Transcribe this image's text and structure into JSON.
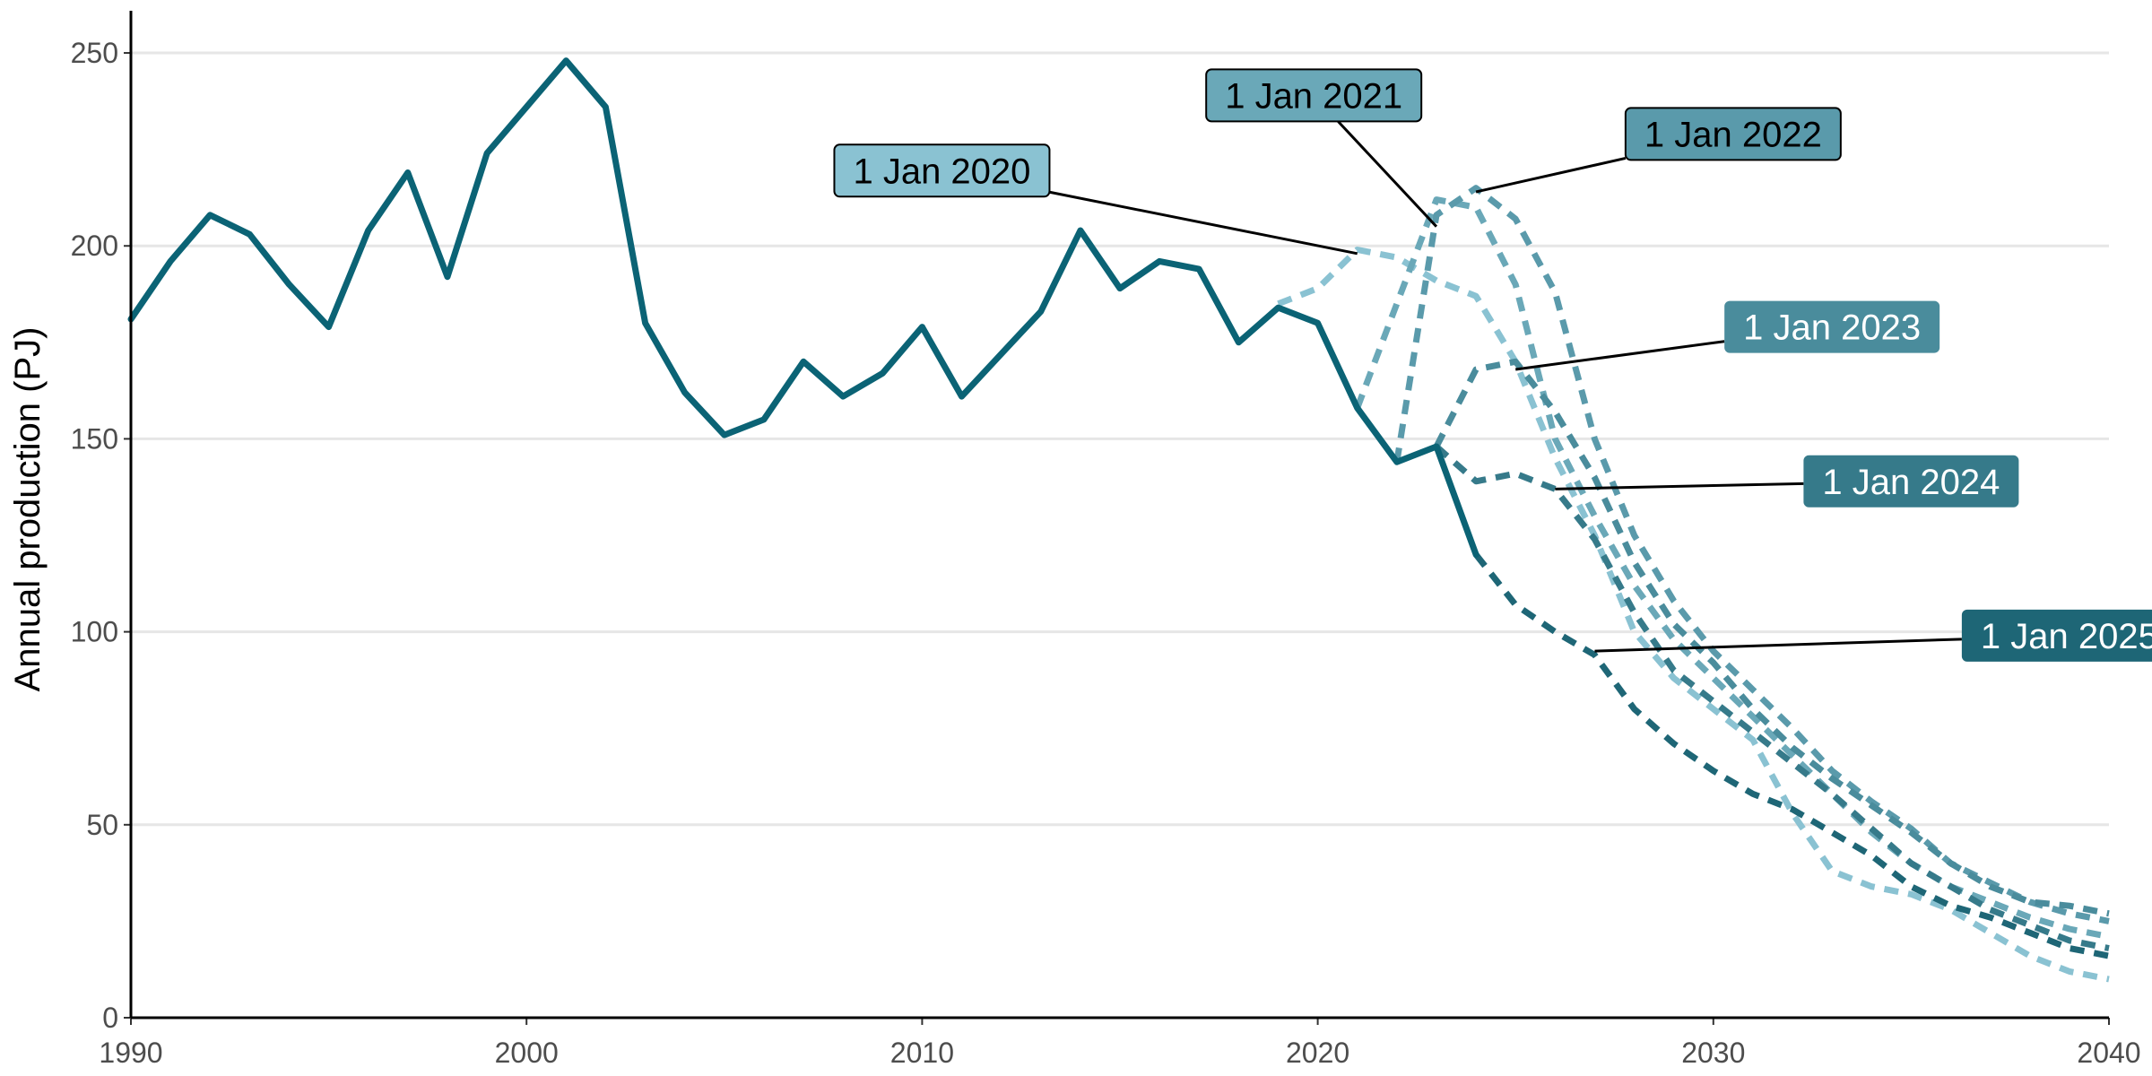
{
  "chart_data": {
    "type": "line",
    "title": "",
    "xlabel": "",
    "ylabel": "Annual production (PJ)",
    "xlim": [
      1990,
      2040
    ],
    "ylim": [
      0,
      260
    ],
    "x_ticks": [
      "1990",
      "2000",
      "2010",
      "2020",
      "2030",
      "2040"
    ],
    "y_ticks": [
      "0",
      "50",
      "100",
      "150",
      "200",
      "250"
    ],
    "grid": "horizontal",
    "legend": "none",
    "series": [
      {
        "kind": "actual",
        "color": "#0b6375",
        "x": [
          1990,
          1991,
          1992,
          1993,
          1994,
          1995,
          1996,
          1997,
          1998,
          1999,
          2000,
          2001,
          2002,
          2003,
          2004,
          2005,
          2006,
          2007,
          2008,
          2009,
          2010,
          2011,
          2012,
          2013,
          2014,
          2015,
          2016,
          2017,
          2018,
          2019,
          2020,
          2021,
          2022,
          2023,
          2024
        ],
        "y": [
          181,
          196,
          208,
          203,
          190,
          179,
          204,
          219,
          192,
          224,
          236,
          248,
          236,
          180,
          162,
          151,
          155,
          170,
          161,
          167,
          179,
          161,
          172,
          183,
          204,
          189,
          196,
          194,
          175,
          184,
          180,
          158,
          144,
          148,
          120
        ]
      },
      {
        "kind": "forecast",
        "label": "1 Jan 2020",
        "color": "#8ac2d2",
        "x": [
          2019,
          2020,
          2021,
          2022,
          2023,
          2024,
          2025,
          2026,
          2027,
          2028,
          2029,
          2030,
          2031,
          2032,
          2033,
          2034,
          2035,
          2036,
          2037,
          2038,
          2039,
          2040
        ],
        "y": [
          185,
          189,
          199,
          197,
          191,
          187,
          170,
          145,
          125,
          100,
          88,
          80,
          72,
          53,
          38,
          34,
          32,
          28,
          22,
          16,
          12,
          10
        ]
      },
      {
        "kind": "forecast",
        "label": "1 Jan 2021",
        "color": "#6aa8b8",
        "x": [
          2021,
          2022,
          2023,
          2024,
          2025,
          2026,
          2027,
          2028,
          2029,
          2030,
          2031,
          2032,
          2033,
          2034,
          2035,
          2036,
          2037,
          2038,
          2039,
          2040
        ],
        "y": [
          158,
          185,
          212,
          210,
          190,
          150,
          130,
          112,
          98,
          88,
          78,
          68,
          58,
          48,
          40,
          34,
          30,
          26,
          23,
          21
        ]
      },
      {
        "kind": "forecast",
        "label": "1 Jan 2022",
        "color": "#5a9aab",
        "x": [
          2022,
          2023,
          2024,
          2025,
          2026,
          2027,
          2028,
          2029,
          2030,
          2031,
          2032,
          2033,
          2034,
          2035,
          2036,
          2037,
          2038,
          2039,
          2040
        ],
        "y": [
          144,
          208,
          215,
          207,
          188,
          150,
          125,
          108,
          95,
          85,
          75,
          64,
          56,
          49,
          40,
          35,
          30,
          27,
          25
        ]
      },
      {
        "kind": "forecast",
        "label": "1 Jan 2023",
        "color": "#4a8c9c",
        "x": [
          2023,
          2024,
          2025,
          2026,
          2027,
          2028,
          2029,
          2030,
          2031,
          2032,
          2033,
          2034,
          2035,
          2036,
          2037,
          2038,
          2039,
          2040
        ],
        "y": [
          148,
          168,
          170,
          157,
          140,
          118,
          102,
          92,
          80,
          70,
          62,
          55,
          48,
          40,
          34,
          30,
          29,
          27
        ]
      },
      {
        "kind": "forecast",
        "label": "1 Jan 2024",
        "color": "#367a8a",
        "x": [
          2023,
          2024,
          2025,
          2026,
          2027,
          2028,
          2029,
          2030,
          2031,
          2032,
          2033,
          2034,
          2035,
          2036,
          2037,
          2038,
          2039,
          2040
        ],
        "y": [
          148,
          139,
          141,
          137,
          124,
          105,
          90,
          82,
          74,
          66,
          58,
          49,
          40,
          34,
          28,
          24,
          20,
          18
        ]
      },
      {
        "kind": "forecast",
        "label": "1 Jan 2025",
        "color": "#1e6676",
        "x": [
          2024,
          2025,
          2026,
          2027,
          2028,
          2029,
          2030,
          2031,
          2032,
          2033,
          2034,
          2035,
          2036,
          2037,
          2038,
          2039,
          2040
        ],
        "y": [
          120,
          107,
          100,
          94,
          80,
          71,
          64,
          58,
          54,
          48,
          42,
          34,
          29,
          26,
          22,
          18,
          16
        ]
      }
    ],
    "annotations": [
      {
        "text": "1 Jan 2020",
        "fill": "#8ac2d2",
        "text_color": "#000000",
        "border": true,
        "label_at": [
          2010.5,
          219.5
        ],
        "point": [
          2021,
          198
        ]
      },
      {
        "text": "1 Jan 2021",
        "fill": "#6aa8b8",
        "text_color": "#000000",
        "border": true,
        "label_at": [
          2019.9,
          239
        ],
        "point": [
          2023,
          205
        ]
      },
      {
        "text": "1 Jan 2022",
        "fill": "#5a9aab",
        "text_color": "#000000",
        "border": true,
        "label_at": [
          2030.5,
          229
        ],
        "point": [
          2024,
          214
        ]
      },
      {
        "text": "1 Jan 2023",
        "fill": "#4a8c9c",
        "text_color": "#ffffff",
        "border": false,
        "label_at": [
          2033,
          179
        ],
        "point": [
          2025,
          168
        ]
      },
      {
        "text": "1 Jan 2024",
        "fill": "#367a8a",
        "text_color": "#ffffff",
        "border": false,
        "label_at": [
          2035,
          139
        ],
        "point": [
          2026,
          137
        ]
      },
      {
        "text": "1 Jan 2025",
        "fill": "#1e6676",
        "text_color": "#ffffff",
        "border": false,
        "label_at": [
          2039,
          99
        ],
        "point": [
          2027,
          95
        ]
      }
    ]
  }
}
